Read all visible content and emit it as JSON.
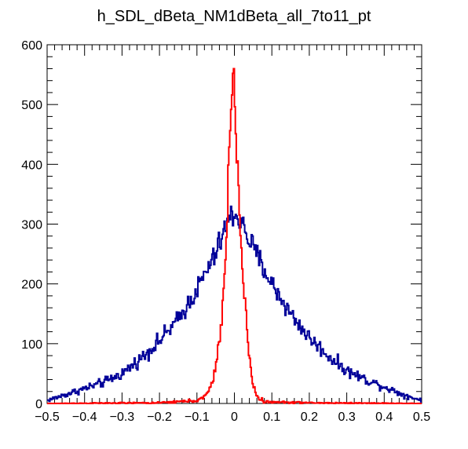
{
  "chart_data": {
    "type": "histogram",
    "title": "h_SDL_dBeta_NM1dBeta_all_7to11_pt",
    "xlabel": "",
    "ylabel": "",
    "xlim": [
      -0.5,
      0.5
    ],
    "ylim": [
      0,
      600
    ],
    "x_ticks": [
      "−0.5",
      "−0.4",
      "−0.3",
      "−0.2",
      "−0.1",
      "0",
      "0.1",
      "0.2",
      "0.3",
      "0.4",
      "0.5"
    ],
    "y_ticks": [
      "0",
      "100",
      "200",
      "300",
      "400",
      "500",
      "600"
    ],
    "grid": false,
    "legend": "none",
    "series": [
      {
        "color": "#000099",
        "points": [
          [
            -0.5,
            5
          ],
          [
            -0.45,
            15
          ],
          [
            -0.4,
            25
          ],
          [
            -0.35,
            35
          ],
          [
            -0.3,
            50
          ],
          [
            -0.25,
            75
          ],
          [
            -0.2,
            105
          ],
          [
            -0.15,
            140
          ],
          [
            -0.1,
            190
          ],
          [
            -0.05,
            250
          ],
          [
            -0.02,
            300
          ],
          [
            0,
            320
          ],
          [
            0.02,
            300
          ],
          [
            0.05,
            260
          ],
          [
            0.1,
            200
          ],
          [
            0.15,
            150
          ],
          [
            0.2,
            110
          ],
          [
            0.25,
            80
          ],
          [
            0.3,
            55
          ],
          [
            0.35,
            40
          ],
          [
            0.4,
            28
          ],
          [
            0.45,
            15
          ],
          [
            0.5,
            5
          ]
        ]
      },
      {
        "color": "#ff0000",
        "points": [
          [
            -0.5,
            0
          ],
          [
            -0.2,
            1
          ],
          [
            -0.15,
            3
          ],
          [
            -0.1,
            5
          ],
          [
            -0.08,
            10
          ],
          [
            -0.06,
            30
          ],
          [
            -0.04,
            100
          ],
          [
            -0.03,
            170
          ],
          [
            -0.02,
            300
          ],
          [
            -0.015,
            420
          ],
          [
            -0.01,
            465
          ],
          [
            -0.005,
            530
          ],
          [
            -0.002,
            572
          ],
          [
            0,
            520
          ],
          [
            0.003,
            460
          ],
          [
            0.006,
            420
          ],
          [
            0.01,
            370
          ],
          [
            0.015,
            300
          ],
          [
            0.02,
            240
          ],
          [
            0.03,
            150
          ],
          [
            0.04,
            80
          ],
          [
            0.05,
            30
          ],
          [
            0.06,
            12
          ],
          [
            0.08,
            3
          ],
          [
            0.1,
            2
          ],
          [
            0.15,
            2
          ],
          [
            0.2,
            1
          ],
          [
            0.5,
            0
          ]
        ]
      }
    ]
  }
}
